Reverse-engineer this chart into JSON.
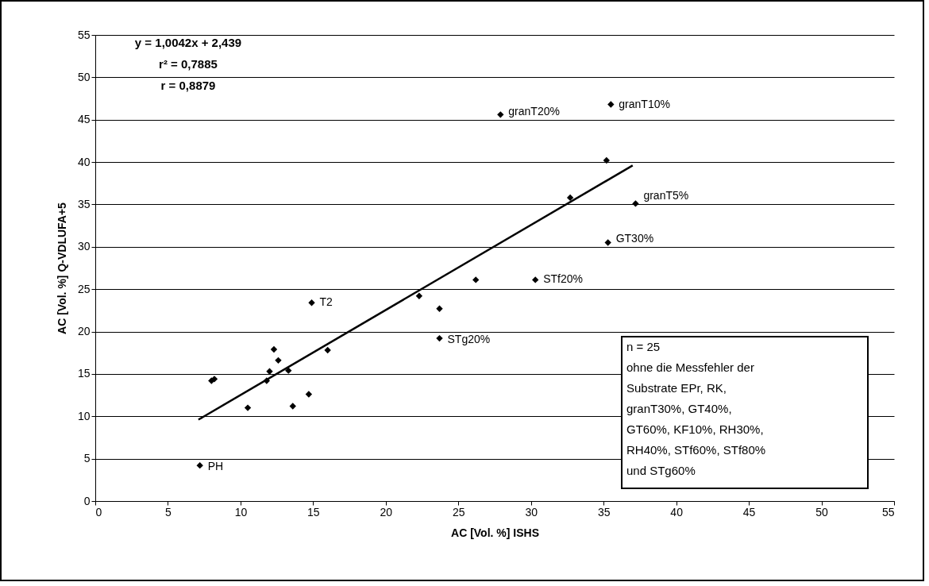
{
  "chart_data": {
    "type": "scatter",
    "xlabel": "AC [Vol. %] ISHS",
    "ylabel": "AC [Vol. %] Q-VDLUFA+5",
    "xlim": [
      0,
      55
    ],
    "xticks": [
      0,
      5,
      10,
      15,
      20,
      25,
      30,
      35,
      40,
      45,
      50,
      55
    ],
    "ylim": [
      0,
      55
    ],
    "yticks": [
      0,
      5,
      10,
      15,
      20,
      25,
      30,
      35,
      40,
      45,
      50,
      55
    ],
    "grid": "y",
    "legend": false,
    "marker": "diamond",
    "series": [
      {
        "color": "#000000",
        "x": [
          7.2,
          8.0,
          8.2,
          10.5,
          11.8,
          12.0,
          12.3,
          12.6,
          13.3,
          13.6,
          14.7,
          14.9,
          16.0,
          22.3,
          23.7,
          23.7,
          26.2,
          27.9,
          30.3,
          32.7,
          35.2,
          35.3,
          35.5,
          37.2
        ],
        "values": [
          4.2,
          14.2,
          14.4,
          11.0,
          14.2,
          15.3,
          17.9,
          16.6,
          15.4,
          11.2,
          12.6,
          23.4,
          17.8,
          24.2,
          22.7,
          19.2,
          26.1,
          45.6,
          26.1,
          35.8,
          40.2,
          30.5,
          46.8,
          35.1
        ]
      },
      {
        "type": "line",
        "color": "#000000",
        "marker": "none",
        "x": [
          7.1,
          37.0
        ],
        "values": [
          9.6,
          39.6
        ]
      }
    ],
    "annotations": [
      "y = 1,0042x + 2,439",
      "r² = 0,7885",
      "r = 0,8879",
      "n = 25\nohne die Messfehler der\nSubstrate EPr, RK,\ngranT30%, GT40%,\nGT60%, KF10%, RH30%,\nRH40%, STf60%, STf80%\nund STg60%",
      {
        "text": "PH",
        "x": 7.2,
        "y": 4.2
      },
      {
        "text": "T2",
        "x": 14.9,
        "y": 23.4
      },
      {
        "text": "granT20%",
        "x": 27.9,
        "y": 45.6
      },
      {
        "text": "granT10%",
        "x": 35.5,
        "y": 46.8
      },
      {
        "text": "granT5%",
        "x": 37.2,
        "y": 35.1
      },
      {
        "text": "GT30%",
        "x": 35.3,
        "y": 30.5
      },
      {
        "text": "STf20%",
        "x": 30.3,
        "y": 26.1
      },
      {
        "text": "STg20%",
        "x": 23.7,
        "y": 19.2
      }
    ]
  }
}
